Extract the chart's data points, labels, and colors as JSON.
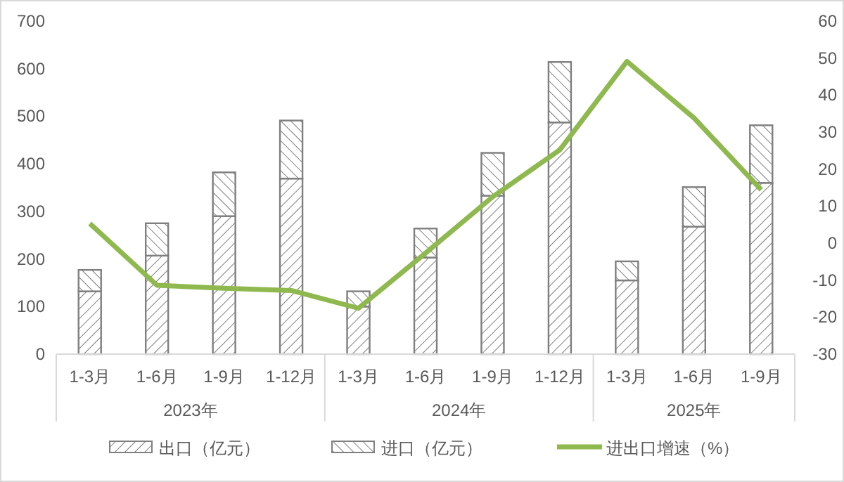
{
  "chart_data": {
    "type": "bar",
    "stacked": true,
    "categories": [
      "1-3月",
      "1-6月",
      "1-9月",
      "1-12月",
      "1-3月",
      "1-6月",
      "1-9月",
      "1-12月",
      "1-3月",
      "1-6月",
      "1-9月"
    ],
    "series": [
      {
        "name": "出口（亿元）",
        "color": "#7f7f7f",
        "values": [
          132,
          207,
          290,
          369,
          100,
          203,
          333,
          487,
          155,
          268,
          360
        ]
      },
      {
        "name": "进口（亿元）",
        "color": "#7f7f7f",
        "values": [
          45,
          68,
          92,
          122,
          32,
          61,
          90,
          127,
          40,
          83,
          121
        ]
      },
      {
        "name": "进出口增速（%）",
        "type": "line",
        "axis": "y2",
        "color": "#8fb84e",
        "values": [
          5.3,
          -11.4,
          -12.2,
          -12.8,
          -17.6,
          -2.7,
          12.5,
          25.2,
          49.1,
          33.8,
          14.4
        ]
      }
    ],
    "annotations": [
      "2023年",
      "2024年",
      "2025年"
    ],
    "ylim": [
      0,
      700
    ],
    "yticks": [
      0,
      100,
      200,
      300,
      400,
      500,
      600,
      700
    ],
    "y2lim": [
      -30,
      60
    ],
    "y2ticks": [
      -30,
      -20,
      -10,
      0,
      10,
      20,
      30,
      40,
      50,
      60
    ],
    "legend": "bottom",
    "grid": false,
    "marker": "none",
    "line_style": "solid"
  }
}
